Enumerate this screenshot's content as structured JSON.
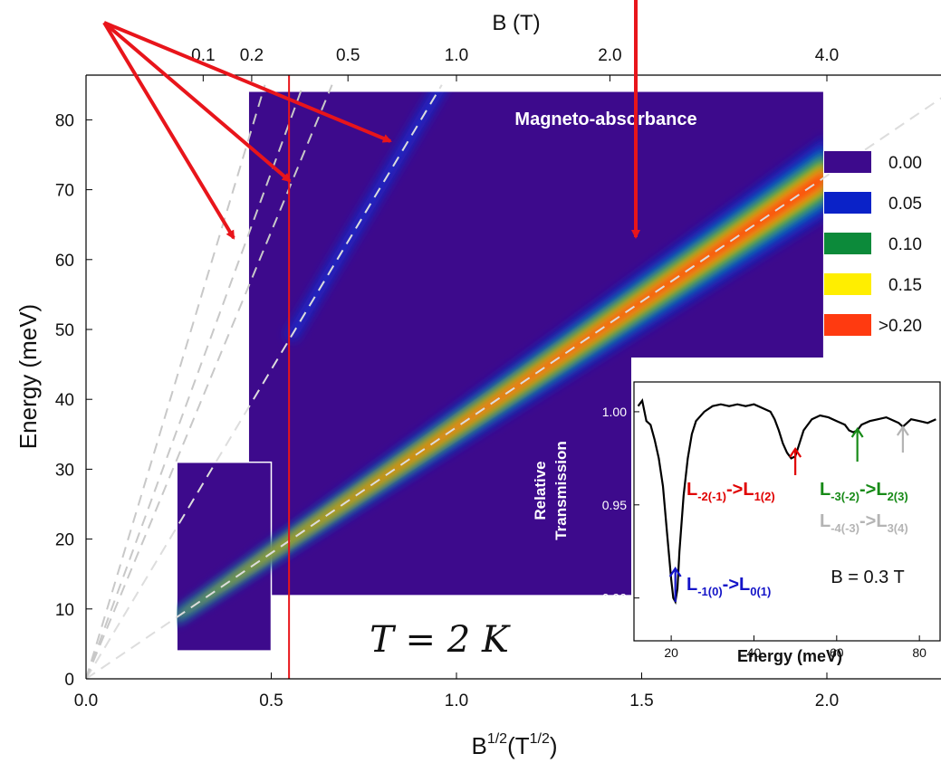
{
  "chart_data": {
    "type": "heatmap",
    "main": {
      "title": "Magneto-absorbance",
      "xlabel": "B",
      "xlabel_sup1": "1/2",
      "xlabel_unit": "(T",
      "xlabel_sup2": "1/2",
      "xlabel_close": ")",
      "ylabel": "Energy (meV)",
      "top_axis_label": "B (T)",
      "xlim": [
        0.0,
        2.35
      ],
      "ylim": [
        0,
        85
      ],
      "x_ticks": [
        {
          "value": 0.0,
          "label": "0.0"
        },
        {
          "value": 0.5,
          "label": "0.5"
        },
        {
          "value": 1.0,
          "label": "1.0"
        },
        {
          "value": 1.5,
          "label": "1.5"
        },
        {
          "value": 2.0,
          "label": "2.0"
        }
      ],
      "y_ticks": [
        {
          "value": 0,
          "label": "0"
        },
        {
          "value": 10,
          "label": "10"
        },
        {
          "value": 20,
          "label": "20"
        },
        {
          "value": 30,
          "label": "30"
        },
        {
          "value": 40,
          "label": "40"
        },
        {
          "value": 50,
          "label": "50"
        },
        {
          "value": 60,
          "label": "60"
        },
        {
          "value": 70,
          "label": "70"
        },
        {
          "value": 80,
          "label": "80"
        }
      ],
      "top_ticks": [
        {
          "value": 0.1,
          "label": "0.1"
        },
        {
          "value": 0.2,
          "label": "0.2"
        },
        {
          "value": 0.5,
          "label": "0.5"
        },
        {
          "value": 1.0,
          "label": "1.0"
        },
        {
          "value": 2.0,
          "label": "2.0"
        },
        {
          "value": 4.0,
          "label": "4.0"
        }
      ],
      "temperature_label": "T = 2 K",
      "vertical_marker_sqrtB": 0.548,
      "data_regions": [
        {
          "x": [
            0.44,
            1.99
          ],
          "y": [
            12,
            84
          ]
        },
        {
          "x": [
            0.245,
            0.5
          ],
          "y": [
            4,
            31
          ]
        }
      ],
      "dashed_lines_slope_meV_per_sqrtT": [
        36.0,
        88.5,
        128.0,
        145.0,
        176.0
      ],
      "bright_band_slope": 36.0,
      "faint_band_slope": 88.5,
      "legend": {
        "placement": "right",
        "entries": [
          {
            "label": "0.00",
            "color": "#3d0a8c"
          },
          {
            "label": "0.05",
            "color": "#0a22c8"
          },
          {
            "label": "0.10",
            "color": "#0c8a3a"
          },
          {
            "label": "0.15",
            "color": "#ffee00"
          },
          {
            "label": ">0.20",
            "color": "#ff3a10"
          }
        ]
      }
    },
    "inset": {
      "type": "line",
      "xlabel": "Energy (meV)",
      "ylabel_line1": "Relative",
      "ylabel_line2": "Transmission",
      "xlim": [
        11,
        85
      ],
      "ylim": [
        0.877,
        1.016
      ],
      "x_ticks": [
        {
          "value": 20,
          "label": "20"
        },
        {
          "value": 40,
          "label": "40"
        },
        {
          "value": 60,
          "label": "60"
        },
        {
          "value": 80,
          "label": "80"
        }
      ],
      "y_ticks": [
        {
          "value": 0.9,
          "label": "0.90"
        },
        {
          "value": 0.95,
          "label": "0.95"
        },
        {
          "value": 1.0,
          "label": "1.00"
        }
      ],
      "field_label": "B = 0.3 T",
      "x": [
        12,
        13,
        14,
        15,
        16,
        17,
        18,
        19,
        20,
        20.5,
        21,
        21.5,
        22,
        23,
        24,
        25,
        26,
        28,
        30,
        32,
        34,
        36,
        38,
        40,
        42,
        44,
        45,
        46,
        47,
        48,
        49,
        50,
        51,
        52,
        54,
        56,
        58,
        60,
        62,
        63,
        64,
        65,
        66,
        68,
        70,
        72,
        74,
        75,
        76,
        77,
        78,
        80,
        82,
        84
      ],
      "y": [
        1.003,
        1.006,
        0.995,
        0.993,
        0.985,
        0.975,
        0.96,
        0.935,
        0.91,
        0.9,
        0.898,
        0.905,
        0.925,
        0.955,
        0.975,
        0.988,
        0.995,
        1.0,
        1.003,
        1.004,
        1.003,
        1.004,
        1.003,
        1.004,
        1.002,
        1.0,
        0.996,
        0.99,
        0.983,
        0.978,
        0.975,
        0.976,
        0.983,
        0.99,
        0.996,
        0.998,
        0.997,
        0.995,
        0.993,
        0.99,
        0.989,
        0.99,
        0.993,
        0.995,
        0.996,
        0.997,
        0.995,
        0.994,
        0.992,
        0.994,
        0.996,
        0.995,
        0.994,
        0.996
      ],
      "transitions": [
        {
          "sub_a": "-1(0)",
          "sub_b": "0(1)",
          "color": "#1414c8",
          "arrow_energy": 21
        },
        {
          "sub_a": "-2(-1)",
          "sub_b": "1(2)",
          "color": "#e00000",
          "arrow_energy": 50
        },
        {
          "sub_a": "-3(-2)",
          "sub_b": "2(3)",
          "color": "#178a17",
          "arrow_energy": 65
        },
        {
          "sub_a": "-4(-3)",
          "sub_b": "3(4)",
          "color": "#b4b4b4",
          "arrow_energy": 76
        }
      ],
      "transition_prefix": "L",
      "transition_arrow": "->"
    }
  }
}
